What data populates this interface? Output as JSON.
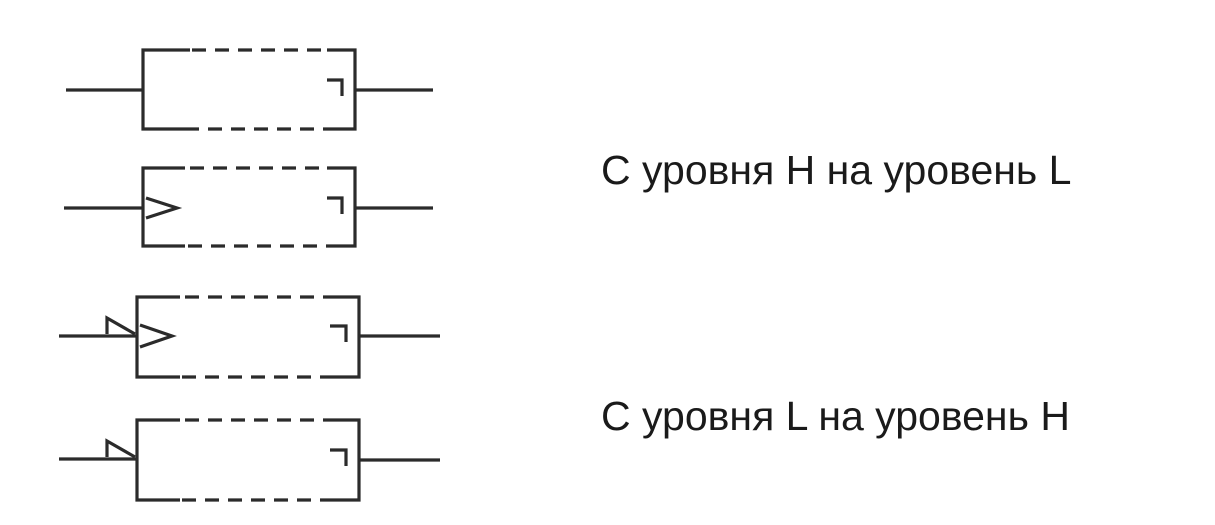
{
  "labels": {
    "h_to_l": "С уровня H на уровень L",
    "l_to_h": "С уровня L на уровень H"
  },
  "colors": {
    "line": "#2b2b2b",
    "text": "#1a1a1a",
    "background": "#ffffff"
  },
  "symbols": [
    {
      "id": "symbol-1",
      "input_marker": "none"
    },
    {
      "id": "symbol-2",
      "input_marker": "dynamic-triangle"
    },
    {
      "id": "symbol-3",
      "input_marker": "negated-dynamic"
    },
    {
      "id": "symbol-4",
      "input_marker": "negation-wedge"
    }
  ]
}
